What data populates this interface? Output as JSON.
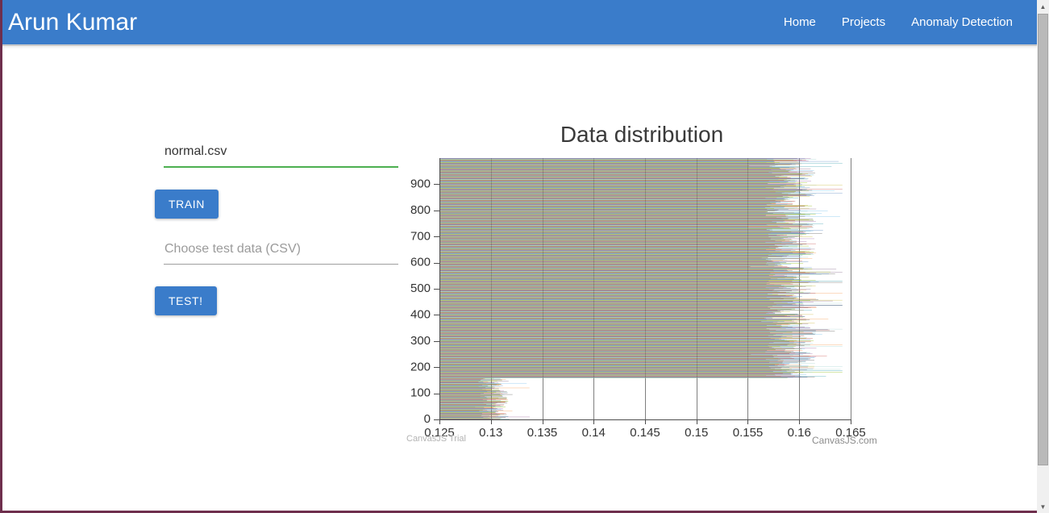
{
  "navbar": {
    "brand": "Arun Kumar",
    "links": [
      "Home",
      "Projects",
      "Anomaly Detection"
    ],
    "bg_color": "#3a7cca"
  },
  "form": {
    "train_input_value": "normal.csv",
    "test_input_placeholder": "Choose test data (CSV)",
    "train_button": "TRAIN",
    "test_button": "TEST!",
    "active_underline_color": "#4caf50",
    "button_color": "#3a7cca"
  },
  "scrollbar": {
    "up_glyph": "▲",
    "down_glyph": "▼"
  },
  "page": {
    "frame_border_color": "#6e2f4d"
  },
  "chart_data": {
    "type": "bar",
    "orientation": "horizontal",
    "title": "Data distribution",
    "xlabel": "",
    "ylabel": "",
    "x_axis": {
      "min": 0.125,
      "max": 0.165,
      "tick_interval": 0.005,
      "tick_labels": [
        "0.125",
        "0.13",
        "0.135",
        "0.14",
        "0.145",
        "0.15",
        "0.155",
        "0.16",
        "0.165"
      ]
    },
    "y_axis": {
      "min": 0,
      "max": 1000,
      "tick_interval": 100,
      "tick_labels": [
        "0",
        "100",
        "200",
        "300",
        "400",
        "500",
        "600",
        "700",
        "800",
        "900"
      ]
    },
    "n_bars": 1000,
    "bars_note": "About 1000 thin horizontal bars, one per row index 0-999; colors cycle through palette. Rows 0-157 cluster near value 0.130; rows 158-999 cluster near 0.159 with jitter around the 0.16 gridline.",
    "segments": [
      {
        "from_index": 0,
        "to_index": 157,
        "mean": 0.1303,
        "jitter": 0.0015,
        "outlier_prob": 0.15,
        "outlier_extra": 0.0022,
        "value_min": 0.1282,
        "value_max": 0.1338
      },
      {
        "from_index": 158,
        "to_index": 999,
        "mean": 0.1592,
        "jitter": 0.0025,
        "outlier_prob": 0.12,
        "outlier_extra": 0.0038,
        "value_min": 0.1545,
        "value_max": 0.1642
      }
    ],
    "palette": [
      "#369EAD",
      "#C24642",
      "#7F6084",
      "#86B402",
      "#A2D1CF",
      "#C8B631",
      "#6DBCEB",
      "#52514E",
      "#4F81BC",
      "#A064A1",
      "#F79647"
    ],
    "seed": 7,
    "grid_on": true,
    "grid_color": "#7f7f7f",
    "axis_color": "#4d4d4d",
    "label_color": "#333333",
    "title_color": "#3a3a3a",
    "watermark_left": "CanvasJS Trial",
    "watermark_right": "CanvasJS.com"
  }
}
